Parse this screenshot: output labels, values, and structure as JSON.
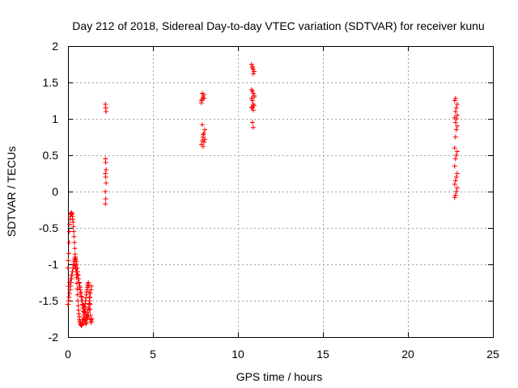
{
  "chart_data": {
    "type": "scatter",
    "title": "Day 212 of 2018, Sidereal Day-to-day VTEC variation (SDTVAR) for receiver kunu",
    "xlabel": "GPS time / hours",
    "ylabel": "SDTVAR / TECUs",
    "xlim": [
      0,
      25
    ],
    "ylim": [
      -2,
      2
    ],
    "xticks": [
      0,
      5,
      10,
      15,
      20,
      25
    ],
    "yticks": [
      -2,
      -1.5,
      -1,
      -0.5,
      0,
      0.5,
      1,
      1.5,
      2
    ],
    "xtick_labels": [
      "0",
      "5",
      "10",
      "15",
      "20",
      "25"
    ],
    "ytick_labels": [
      "-2",
      "-1.5",
      "-1",
      "-0.5",
      "0",
      "0.5",
      "1",
      "1.5",
      "2"
    ],
    "grid": true,
    "marker": "+",
    "color": "#ff0000",
    "series": [
      {
        "name": "SDTVAR",
        "x": [
          0.0,
          0.02,
          0.04,
          0.06,
          0.08,
          0.1,
          0.12,
          0.14,
          0.16,
          0.18,
          0.2,
          0.22,
          0.24,
          0.26,
          0.28,
          0.3,
          0.32,
          0.34,
          0.36,
          0.38,
          0.4,
          0.42,
          0.44,
          0.46,
          0.48,
          0.5,
          0.52,
          0.54,
          0.56,
          0.58,
          0.6,
          0.62,
          0.64,
          0.66,
          0.68,
          0.7,
          0.72,
          0.74,
          0.76,
          0.78,
          0.8,
          0.82,
          0.84,
          0.86,
          0.88,
          0.9,
          0.92,
          0.94,
          0.96,
          0.98,
          1.0,
          1.02,
          1.04,
          1.06,
          1.08,
          1.1,
          1.12,
          1.14,
          1.16,
          1.18,
          1.2,
          1.22,
          1.24,
          1.26,
          1.28,
          1.3,
          1.32,
          1.34,
          1.36,
          1.38,
          1.4,
          0.0,
          0.03,
          0.06,
          0.09,
          0.12,
          0.15,
          0.18,
          0.21,
          0.24,
          0.27,
          0.3,
          0.33,
          0.36,
          0.39,
          0.42,
          0.45,
          0.48,
          0.51,
          0.54,
          0.57,
          0.6,
          0.63,
          0.66,
          0.69,
          0.72,
          0.75,
          0.78,
          0.81,
          0.84,
          0.87,
          0.9,
          0.93,
          0.96,
          0.99,
          1.02,
          1.05,
          1.08,
          1.11,
          1.14,
          1.17,
          1.2,
          1.23,
          1.26,
          1.29,
          1.32,
          1.35,
          1.38,
          0.05,
          0.1,
          0.15,
          0.2,
          0.25,
          0.3,
          0.35,
          0.4,
          0.45,
          0.5,
          0.55,
          0.6,
          0.65,
          0.7,
          0.75,
          0.8,
          0.85,
          0.9,
          0.95,
          1.0,
          1.05,
          1.1,
          1.15,
          1.2,
          1.25,
          1.3,
          2.2,
          2.22,
          2.24,
          2.2,
          2.22,
          2.24,
          2.2,
          2.22,
          2.24,
          2.2,
          2.22,
          2.2,
          7.85,
          7.9,
          7.95,
          8.0,
          8.05,
          7.9,
          7.95,
          8.0,
          8.05,
          7.85,
          7.9,
          7.95,
          8.0,
          7.9,
          8.0,
          7.85,
          7.95,
          10.8,
          10.85,
          10.9,
          10.95,
          10.8,
          10.85,
          10.9,
          10.95,
          10.8,
          10.85,
          10.9,
          10.95,
          10.85,
          10.9,
          10.85,
          10.9,
          10.8,
          10.95,
          10.9,
          10.85,
          22.75,
          22.8,
          22.85,
          22.9,
          22.75,
          22.8,
          22.85,
          22.9,
          22.75,
          22.8,
          22.85,
          22.9,
          22.75,
          22.8,
          22.85,
          22.9,
          22.8,
          22.85,
          22.75,
          22.9,
          22.8,
          22.85,
          22.9,
          22.75,
          22.8
        ],
        "y": [
          -1.05,
          -0.95,
          -0.85,
          -0.7,
          -0.55,
          -0.45,
          -0.38,
          -0.34,
          -0.31,
          -0.3,
          -0.29,
          -0.3,
          -0.31,
          -0.34,
          -0.38,
          -0.42,
          -0.48,
          -0.55,
          -0.62,
          -0.7,
          -0.78,
          -0.86,
          -0.94,
          -1.02,
          -1.1,
          -1.18,
          -1.26,
          -1.34,
          -1.42,
          -1.5,
          -1.57,
          -1.63,
          -1.68,
          -1.72,
          -1.76,
          -1.78,
          -1.8,
          -1.82,
          -1.83,
          -1.84,
          -1.84,
          -1.83,
          -1.82,
          -1.8,
          -1.78,
          -1.76,
          -1.73,
          -1.7,
          -1.66,
          -1.62,
          -1.58,
          -1.54,
          -1.5,
          -1.46,
          -1.42,
          -1.38,
          -1.35,
          -1.32,
          -1.29,
          -1.27,
          -1.25,
          -1.3,
          -1.38,
          -1.46,
          -1.54,
          -1.62,
          -1.7,
          -1.76,
          -1.8,
          -1.78,
          -1.75,
          -1.55,
          -1.5,
          -1.45,
          -1.4,
          -1.35,
          -1.3,
          -1.25,
          -1.2,
          -1.15,
          -1.1,
          -1.05,
          -1.0,
          -0.96,
          -0.93,
          -0.9,
          -0.92,
          -0.96,
          -1.0,
          -1.05,
          -1.1,
          -1.15,
          -1.2,
          -1.25,
          -1.3,
          -1.35,
          -1.4,
          -1.45,
          -1.5,
          -1.55,
          -1.6,
          -1.65,
          -1.7,
          -1.75,
          -1.78,
          -1.8,
          -1.82,
          -1.8,
          -1.76,
          -1.72,
          -1.66,
          -1.6,
          -1.55,
          -1.5,
          -1.45,
          -1.4,
          -1.35,
          -1.3,
          -1.3,
          -1.25,
          -1.2,
          -1.15,
          -1.1,
          -1.05,
          -1.0,
          -1.02,
          -1.06,
          -1.1,
          -1.14,
          -1.2,
          -1.26,
          -1.32,
          -1.38,
          -1.44,
          -1.5,
          -1.56,
          -1.6,
          -1.64,
          -1.68,
          -1.72,
          -1.74,
          -1.7,
          -1.62,
          -1.55,
          1.2,
          1.15,
          1.1,
          0.45,
          0.4,
          0.3,
          0.25,
          0.2,
          0.12,
          0.0,
          -0.1,
          -0.17,
          0.65,
          0.7,
          0.75,
          0.8,
          0.85,
          0.92,
          0.62,
          0.68,
          0.72,
          1.22,
          1.27,
          1.3,
          1.33,
          1.35,
          1.28,
          1.25,
          0.78,
          1.75,
          1.72,
          1.68,
          1.65,
          1.4,
          1.38,
          1.35,
          1.32,
          1.28,
          1.25,
          1.2,
          1.18,
          1.15,
          1.12,
          0.95,
          0.88,
          1.16,
          1.3,
          1.62,
          1.7,
          -0.08,
          -0.05,
          0.0,
          0.05,
          0.1,
          0.15,
          0.2,
          0.25,
          0.35,
          0.45,
          0.5,
          0.55,
          0.6,
          0.75,
          0.85,
          0.9,
          0.95,
          1.0,
          1.02,
          1.05,
          1.1,
          1.15,
          1.2,
          1.25,
          1.28
        ]
      }
    ]
  }
}
